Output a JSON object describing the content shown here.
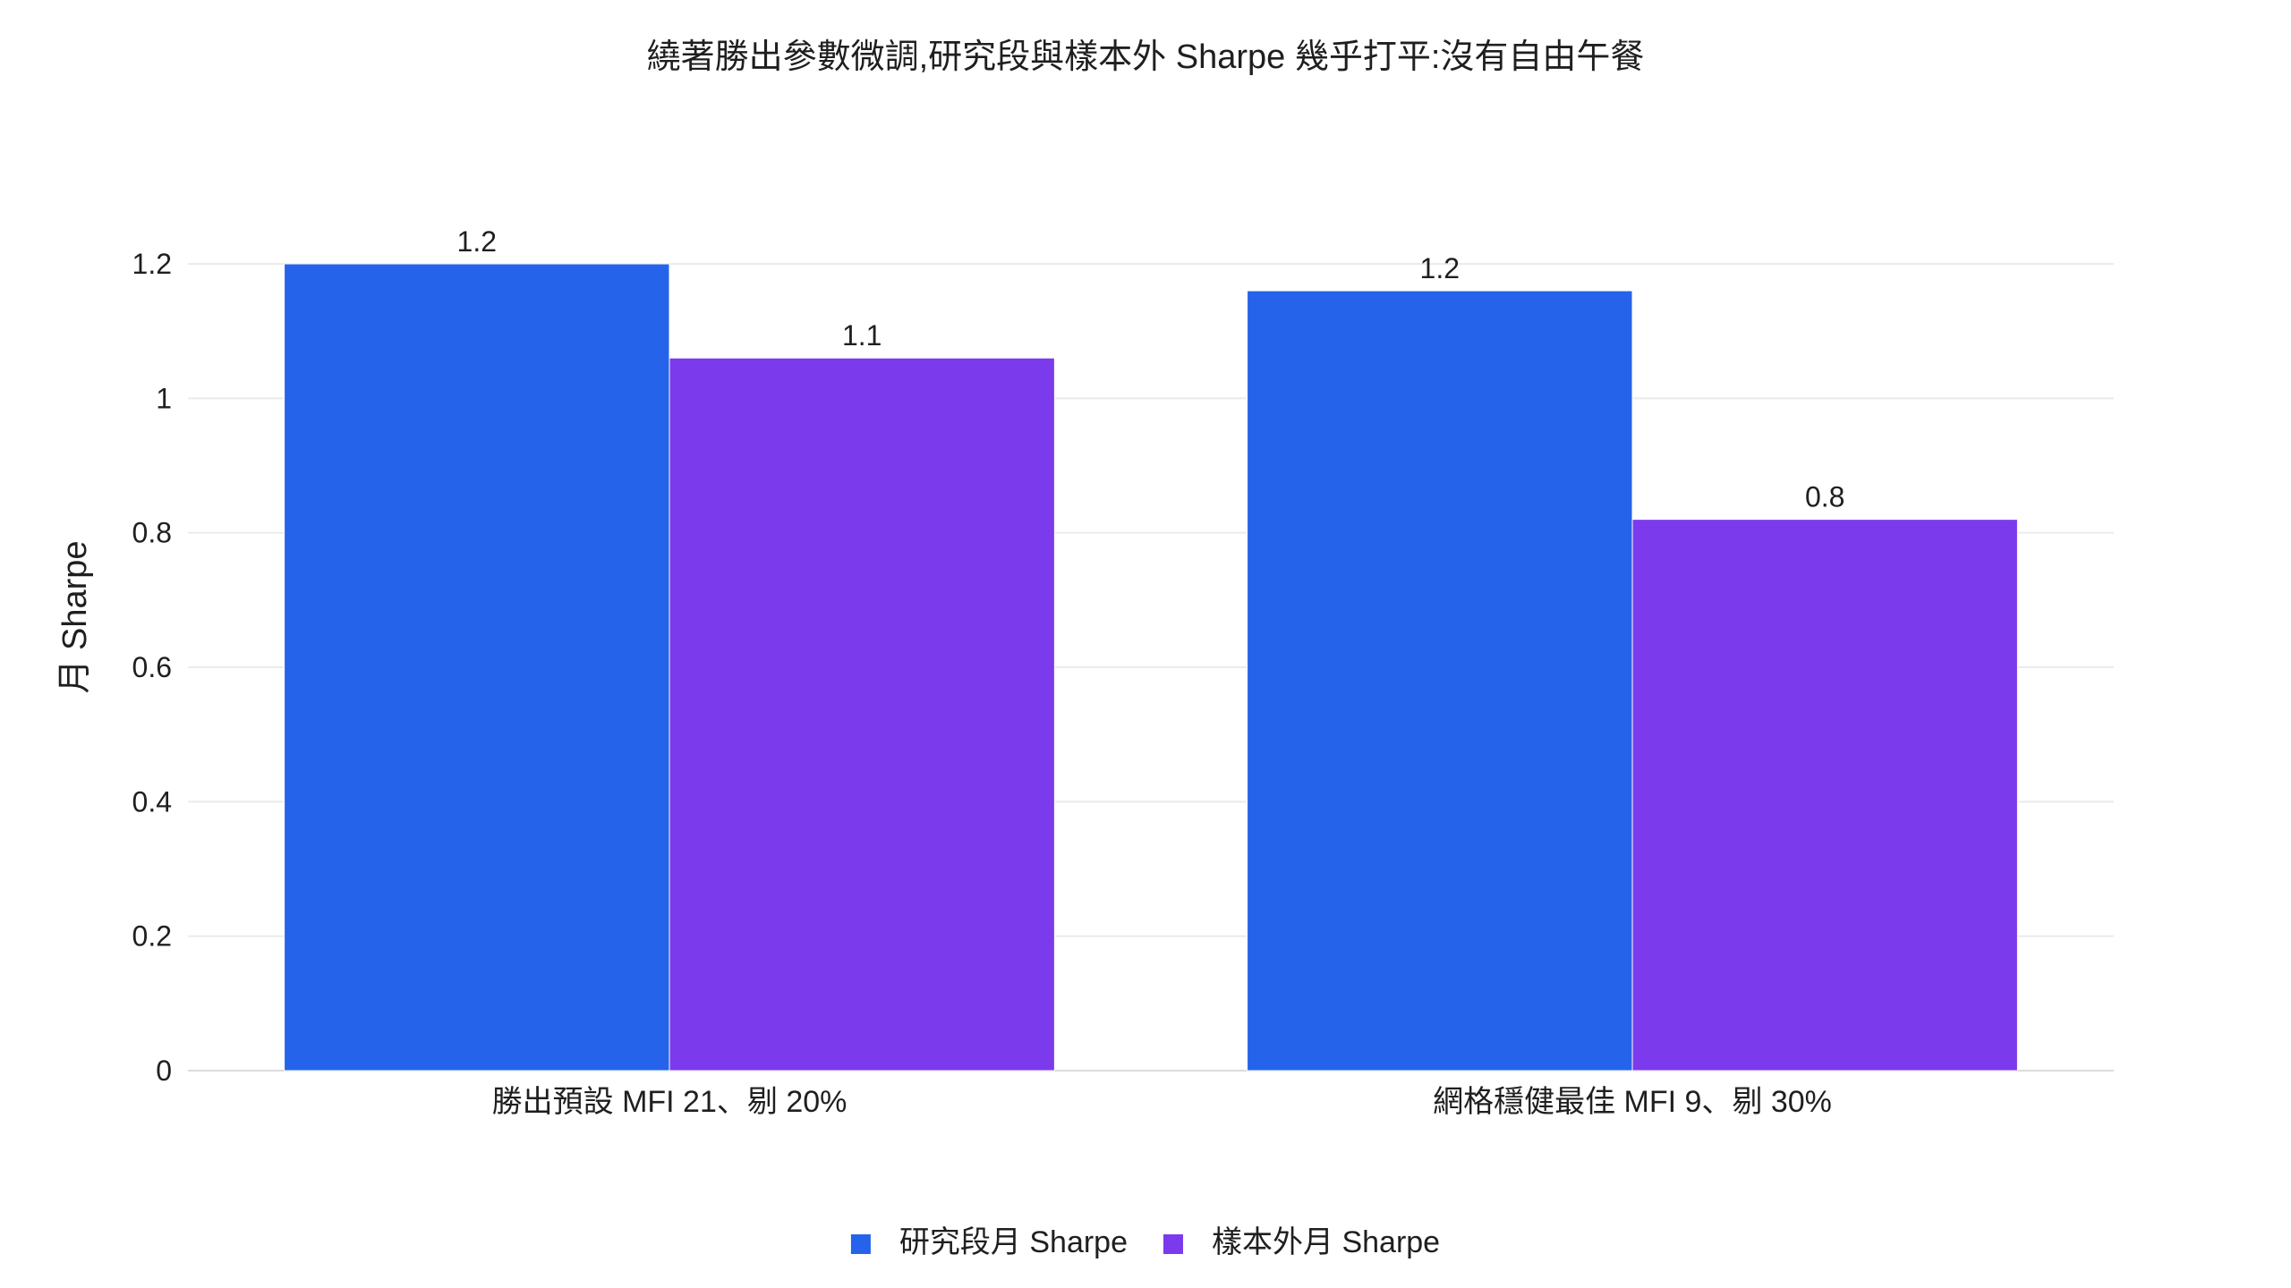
{
  "chart_data": {
    "type": "bar",
    "title": "繞著勝出參數微調,研究段與樣本外 Sharpe 幾乎打平:沒有自由午餐",
    "xlabel": "",
    "ylabel": "月 Sharpe",
    "ylim": [
      0,
      1.2
    ],
    "yticks": [
      0,
      0.2,
      0.4,
      0.6,
      0.8,
      1,
      1.2
    ],
    "ytick_labels": [
      "0",
      "0.2",
      "0.4",
      "0.6",
      "0.8",
      "1",
      "1.2"
    ],
    "grid": true,
    "legend_position": "bottom-center",
    "categories": [
      "勝出預設 MFI 21、剔 20%",
      "網格穩健最佳 MFI 9、剔 30%"
    ],
    "series": [
      {
        "name": "研究段月 Sharpe",
        "color": "#2563eb",
        "values": [
          1.2,
          1.16
        ],
        "labels": [
          "1.2",
          "1.2"
        ]
      },
      {
        "name": "樣本外月 Sharpe",
        "color": "#7c3aed",
        "values": [
          1.06,
          0.82
        ],
        "labels": [
          "1.1",
          "0.8"
        ]
      }
    ]
  }
}
